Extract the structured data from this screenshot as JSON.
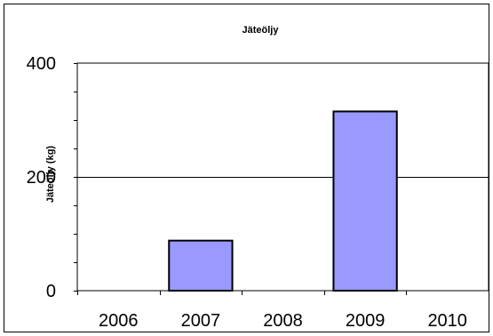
{
  "chart_data": {
    "type": "bar",
    "title": "Jäteöljy",
    "ylabel": "Jäteöljy (kg)",
    "xlabel": "",
    "categories": [
      "2006",
      "2007",
      "2008",
      "2009",
      "2010"
    ],
    "values": [
      0,
      88,
      0,
      315,
      0
    ],
    "ylim": [
      0,
      400
    ],
    "yticks": [
      "0",
      "200",
      "400"
    ],
    "grid": "horizontal-major",
    "legend": "none",
    "colors": {
      "bar": "#9999ff",
      "bar_stroke": "#000000",
      "axis": "#000000",
      "grid": "#000000",
      "border": "#000000"
    }
  }
}
